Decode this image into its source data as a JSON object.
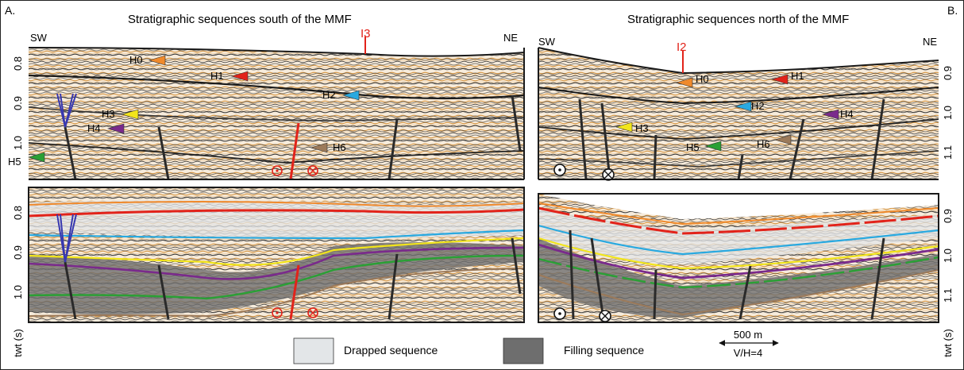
{
  "panels": {
    "a_letter": "A.",
    "b_letter": "B.",
    "a_title": "Stratigraphic sequences south of the MMF",
    "b_title": "Stratigraphic sequences north of the MMF"
  },
  "orientation": {
    "a_left": "SW",
    "a_right": "NE",
    "b_left": "SW",
    "b_right": "NE"
  },
  "wells": {
    "a": "I3",
    "b": "I2"
  },
  "horizons": {
    "a": [
      "H0",
      "H1",
      "H2",
      "H3",
      "H4",
      "H5",
      "H6"
    ],
    "b": [
      "H0",
      "H1",
      "H2",
      "H3",
      "H4",
      "H5",
      "H6"
    ]
  },
  "axes": {
    "left_ticks_top": [
      "0.8",
      "0.9",
      "1.0"
    ],
    "left_ticks_bottom": [
      "0.8",
      "0.9",
      "1.0"
    ],
    "right_ticks_top": [
      "0.9",
      "1.0",
      "1.1"
    ],
    "right_ticks_bottom": [
      "0.9",
      "1.0",
      "1.1"
    ],
    "left_unit": "twt (s)",
    "right_unit": "twt (s)"
  },
  "legend": {
    "drapped": "Drapped sequence",
    "filling": "Filling sequence",
    "scale": "500 m",
    "ratio": "V/H=4"
  },
  "colors": {
    "H0": "#f08a2c",
    "H1": "#e2231a",
    "H2": "#29a9e0",
    "H3": "#f2e51a",
    "H4": "#7a2a8c",
    "H5": "#2aa035",
    "H6": "#9c7a5a",
    "fault": "#2a2a2a",
    "mmf": "#e2231a",
    "flower": "#3838b0",
    "drapped": "#e3e6e8",
    "filling": "#6e6e6e"
  }
}
